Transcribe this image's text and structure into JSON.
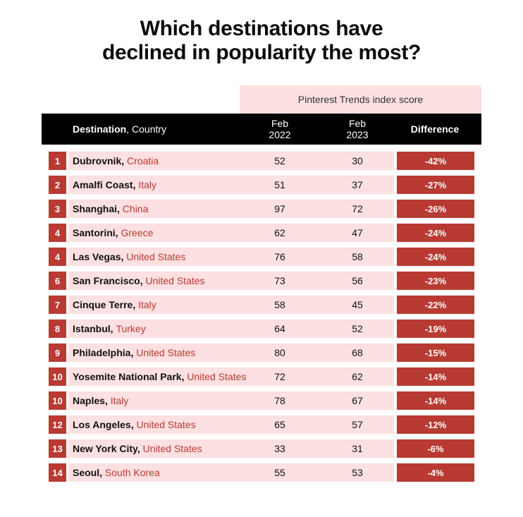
{
  "title_lines": [
    "Which destinations have",
    "declined in popularity the most?"
  ],
  "group_header": "Pinterest Trends index score",
  "colors": {
    "accent": "#b93a32",
    "band": "#fde0e1",
    "header_bg": "#000000"
  },
  "chart_data": {
    "type": "table",
    "title": "Which destinations have declined in popularity the most?",
    "group_header": "Pinterest Trends index score",
    "columns": {
      "destination_bold": "Destination",
      "destination_rest": ", Country",
      "feb2022": [
        "Feb",
        "2022"
      ],
      "feb2023": [
        "Feb",
        "2023"
      ],
      "difference": "Difference"
    },
    "rows": [
      {
        "rank": "1",
        "city": "Dubrovnik",
        "country": "Croatia",
        "feb2022": 52,
        "feb2023": 30,
        "difference": "-42%"
      },
      {
        "rank": "2",
        "city": "Amalfi Coast",
        "country": "Italy",
        "feb2022": 51,
        "feb2023": 37,
        "difference": "-27%"
      },
      {
        "rank": "3",
        "city": "Shanghai",
        "country": "China",
        "feb2022": 97,
        "feb2023": 72,
        "difference": "-26%"
      },
      {
        "rank": "4",
        "city": "Santorini",
        "country": "Greece",
        "feb2022": 62,
        "feb2023": 47,
        "difference": "-24%"
      },
      {
        "rank": "4",
        "city": "Las Vegas",
        "country": "United States",
        "feb2022": 76,
        "feb2023": 58,
        "difference": "-24%"
      },
      {
        "rank": "6",
        "city": "San Francisco",
        "country": "United States",
        "feb2022": 73,
        "feb2023": 56,
        "difference": "-23%"
      },
      {
        "rank": "7",
        "city": "Cinque Terre",
        "country": "Italy",
        "feb2022": 58,
        "feb2023": 45,
        "difference": "-22%"
      },
      {
        "rank": "8",
        "city": "Istanbul",
        "country": "Turkey",
        "feb2022": 64,
        "feb2023": 52,
        "difference": "-19%"
      },
      {
        "rank": "9",
        "city": "Philadelphia",
        "country": "United States",
        "feb2022": 80,
        "feb2023": 68,
        "difference": "-15%"
      },
      {
        "rank": "10",
        "city": "Yosemite National Park",
        "country": "United States",
        "feb2022": 72,
        "feb2023": 62,
        "difference": "-14%"
      },
      {
        "rank": "10",
        "city": "Naples",
        "country": "Italy",
        "feb2022": 78,
        "feb2023": 67,
        "difference": "-14%"
      },
      {
        "rank": "12",
        "city": "Los Angeles",
        "country": "United States",
        "feb2022": 65,
        "feb2023": 57,
        "difference": "-12%"
      },
      {
        "rank": "13",
        "city": "New York City",
        "country": "United States",
        "feb2022": 33,
        "feb2023": 31,
        "difference": "-6%"
      },
      {
        "rank": "14",
        "city": "Seoul",
        "country": "South Korea",
        "feb2022": 55,
        "feb2023": 53,
        "difference": "-4%"
      }
    ]
  }
}
